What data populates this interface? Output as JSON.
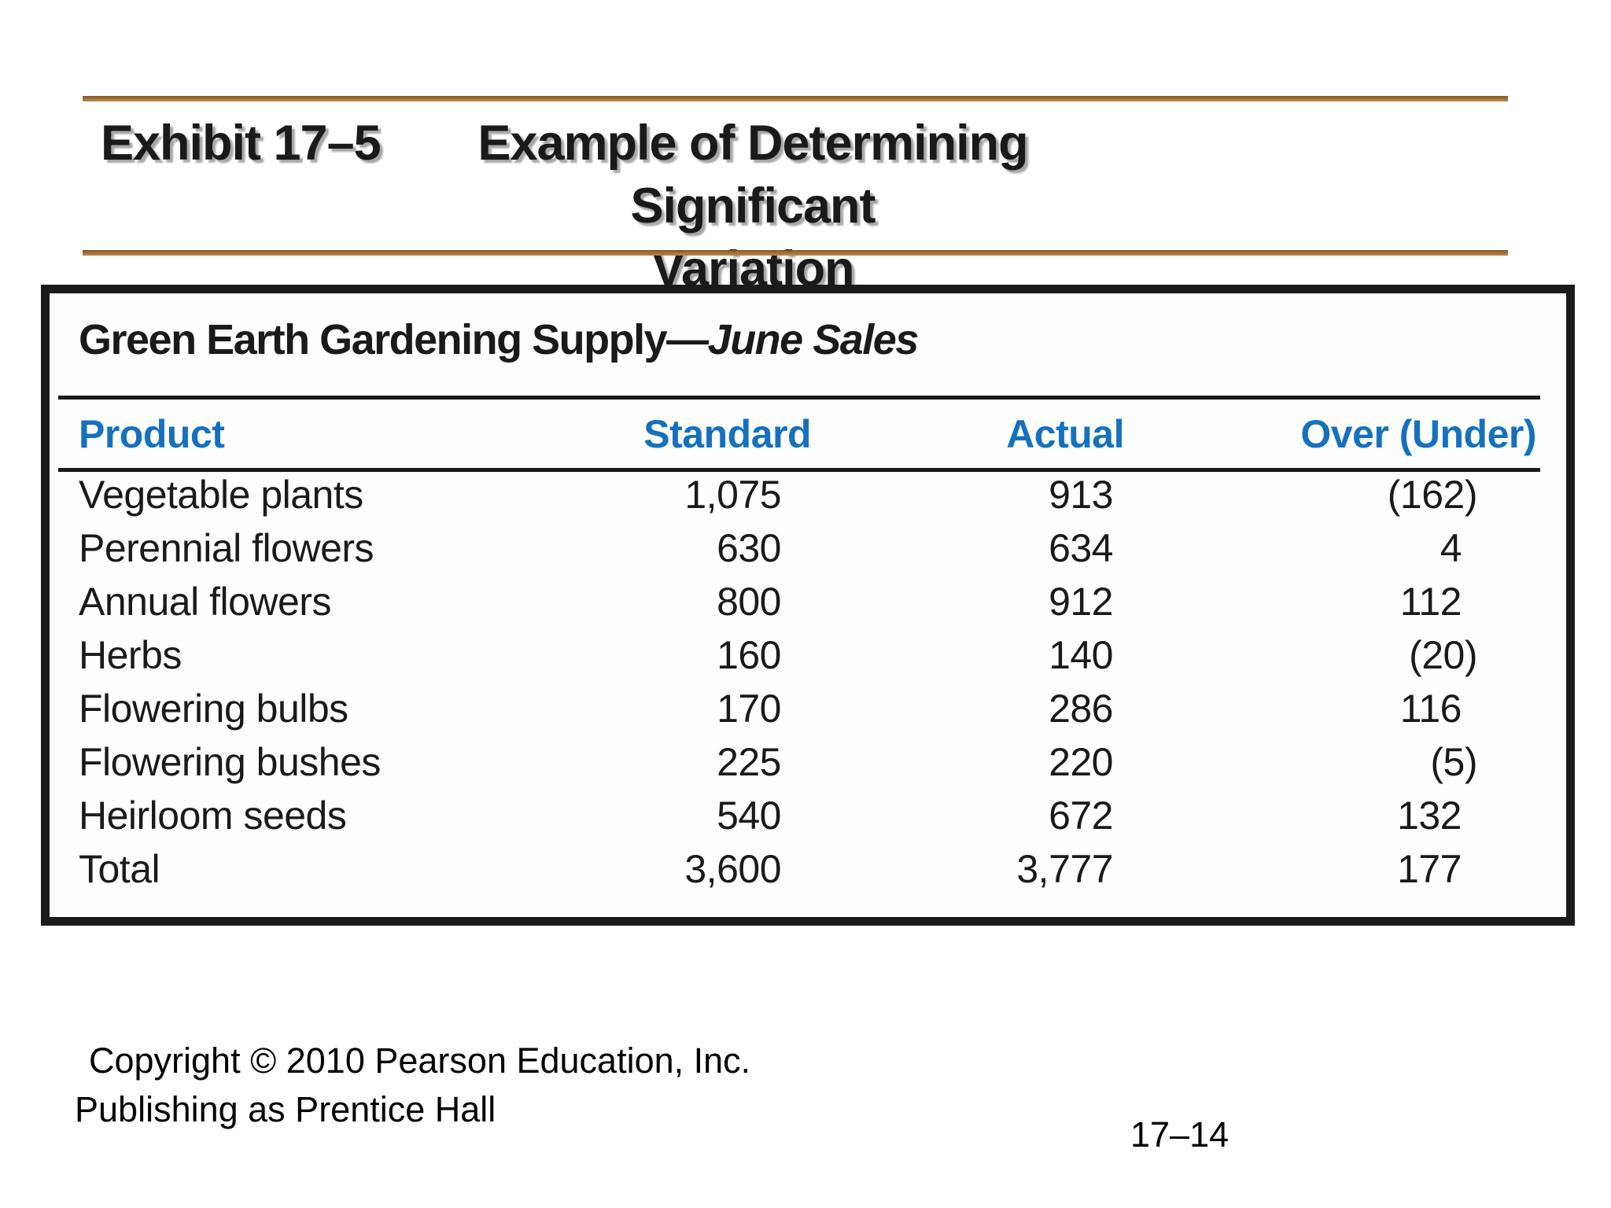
{
  "slide": {
    "exhibit_label": "Exhibit 17–5",
    "title_line1": "Example of Determining Significant",
    "title_line2": "Variation"
  },
  "exhibit_table": {
    "heading_regular": "Green Earth Gardening Supply—",
    "heading_italic": "June Sales",
    "columns": [
      "Product",
      "Standard",
      "Actual",
      "Over (Under)"
    ],
    "rows": [
      {
        "product": "Vegetable plants",
        "standard": "1,075",
        "actual": "913",
        "over_under": "(162)"
      },
      {
        "product": "Perennial flowers",
        "standard": "630",
        "actual": "634",
        "over_under": "4"
      },
      {
        "product": "Annual flowers",
        "standard": "800",
        "actual": "912",
        "over_under": "112"
      },
      {
        "product": "Herbs",
        "standard": "160",
        "actual": "140",
        "over_under": "(20)"
      },
      {
        "product": "Flowering bulbs",
        "standard": "170",
        "actual": "286",
        "over_under": "116"
      },
      {
        "product": "Flowering bushes",
        "standard": "225",
        "actual": "220",
        "over_under": "(5)"
      },
      {
        "product": "Heirloom seeds",
        "standard": "540",
        "actual": "672",
        "over_under": "132"
      },
      {
        "product": "Total",
        "standard": "3,600",
        "actual": "3,777",
        "over_under": "177"
      }
    ]
  },
  "footer": {
    "copyright_line1": "Copyright © 2010 Pearson Education, Inc.",
    "copyright_line2": "Publishing as Prentice Hall",
    "page_number": "17–14"
  },
  "colors": {
    "header_blue": "#1571BE",
    "rule_brown": "#A06F38",
    "table_border_black": "#1A1A1A"
  },
  "chart_data": {
    "type": "table",
    "title": "Green Earth Gardening Supply—June Sales",
    "columns": [
      "Product",
      "Standard",
      "Actual",
      "Over (Under)"
    ],
    "rows": [
      [
        "Vegetable plants",
        1075,
        913,
        -162
      ],
      [
        "Perennial flowers",
        630,
        634,
        4
      ],
      [
        "Annual flowers",
        800,
        912,
        112
      ],
      [
        "Herbs",
        160,
        140,
        -20
      ],
      [
        "Flowering bulbs",
        170,
        286,
        116
      ],
      [
        "Flowering bushes",
        225,
        220,
        -5
      ],
      [
        "Heirloom seeds",
        540,
        672,
        132
      ],
      [
        "Total",
        3600,
        3777,
        177
      ]
    ]
  }
}
